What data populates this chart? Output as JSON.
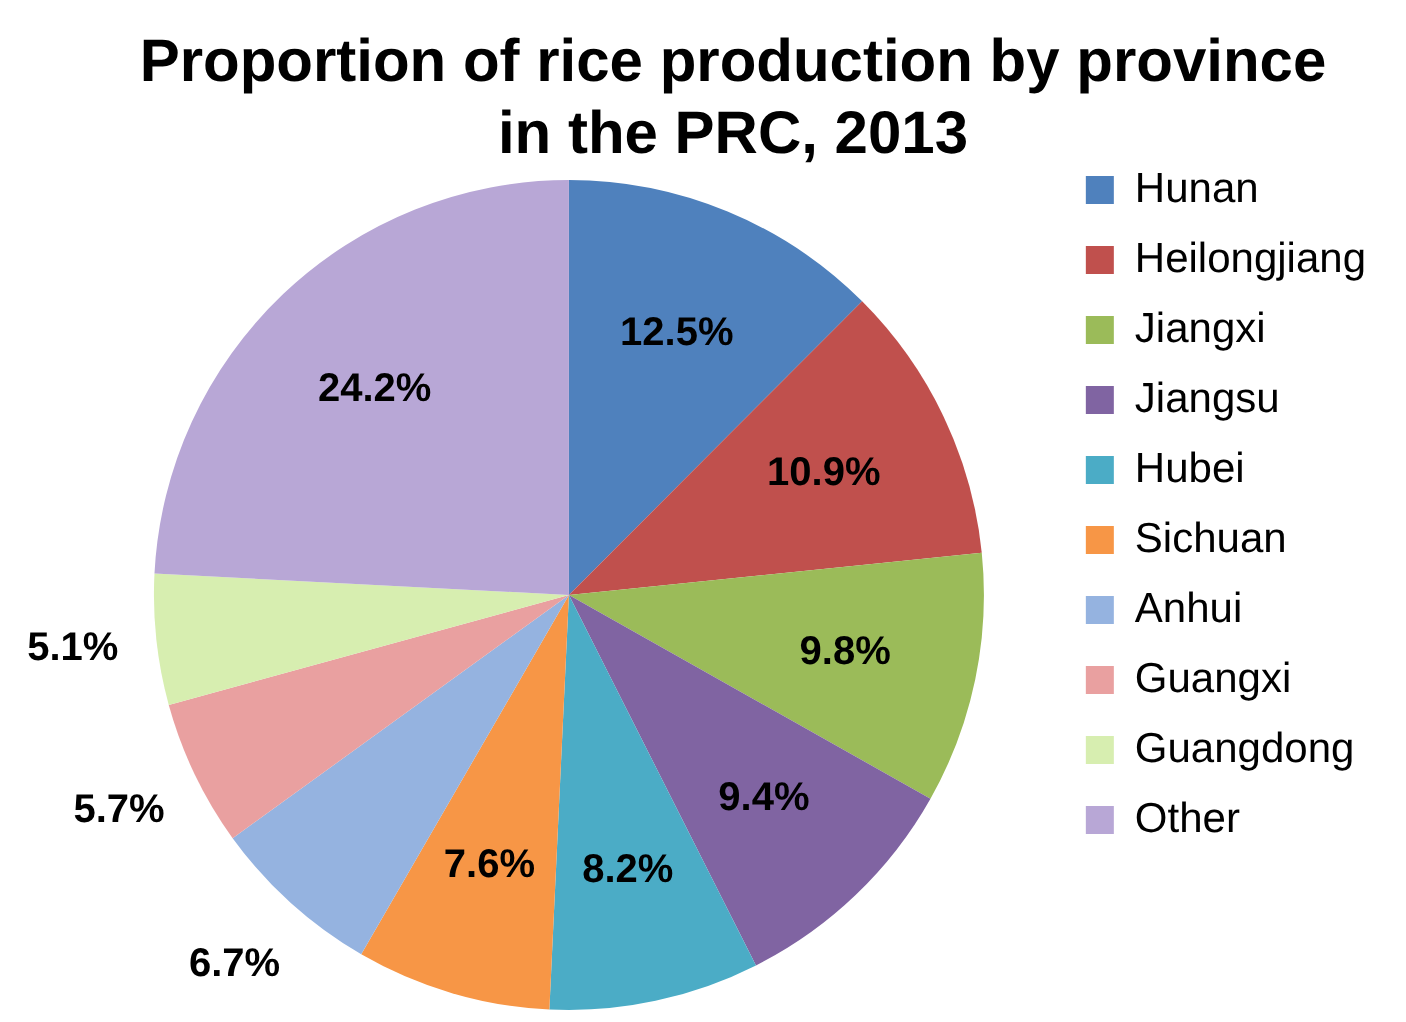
{
  "chart_data": {
    "type": "pie",
    "title": "Proportion of rice production by province in the PRC, 2013",
    "categories": [
      "Hunan",
      "Heilongjiang",
      "Jiangxi",
      "Jiangsu",
      "Hubei",
      "Sichuan",
      "Anhui",
      "Guangxi",
      "Guangdong",
      "Other"
    ],
    "values": [
      12.5,
      10.9,
      9.8,
      9.4,
      8.2,
      7.6,
      6.7,
      5.7,
      5.1,
      24.2
    ],
    "colors": [
      "#4f81bd",
      "#c0504d",
      "#9bbb59",
      "#8064a2",
      "#4bacc6",
      "#f79646",
      "#95b3e0",
      "#e9a0a0",
      "#d7eeb0",
      "#b8a7d6"
    ],
    "value_labels": [
      "12.5%",
      "10.9%",
      "9.8%",
      "9.4%",
      "8.2%",
      "7.6%",
      "6.7%",
      "5.7%",
      "5.1%",
      "24.2%"
    ],
    "legend": "right"
  }
}
